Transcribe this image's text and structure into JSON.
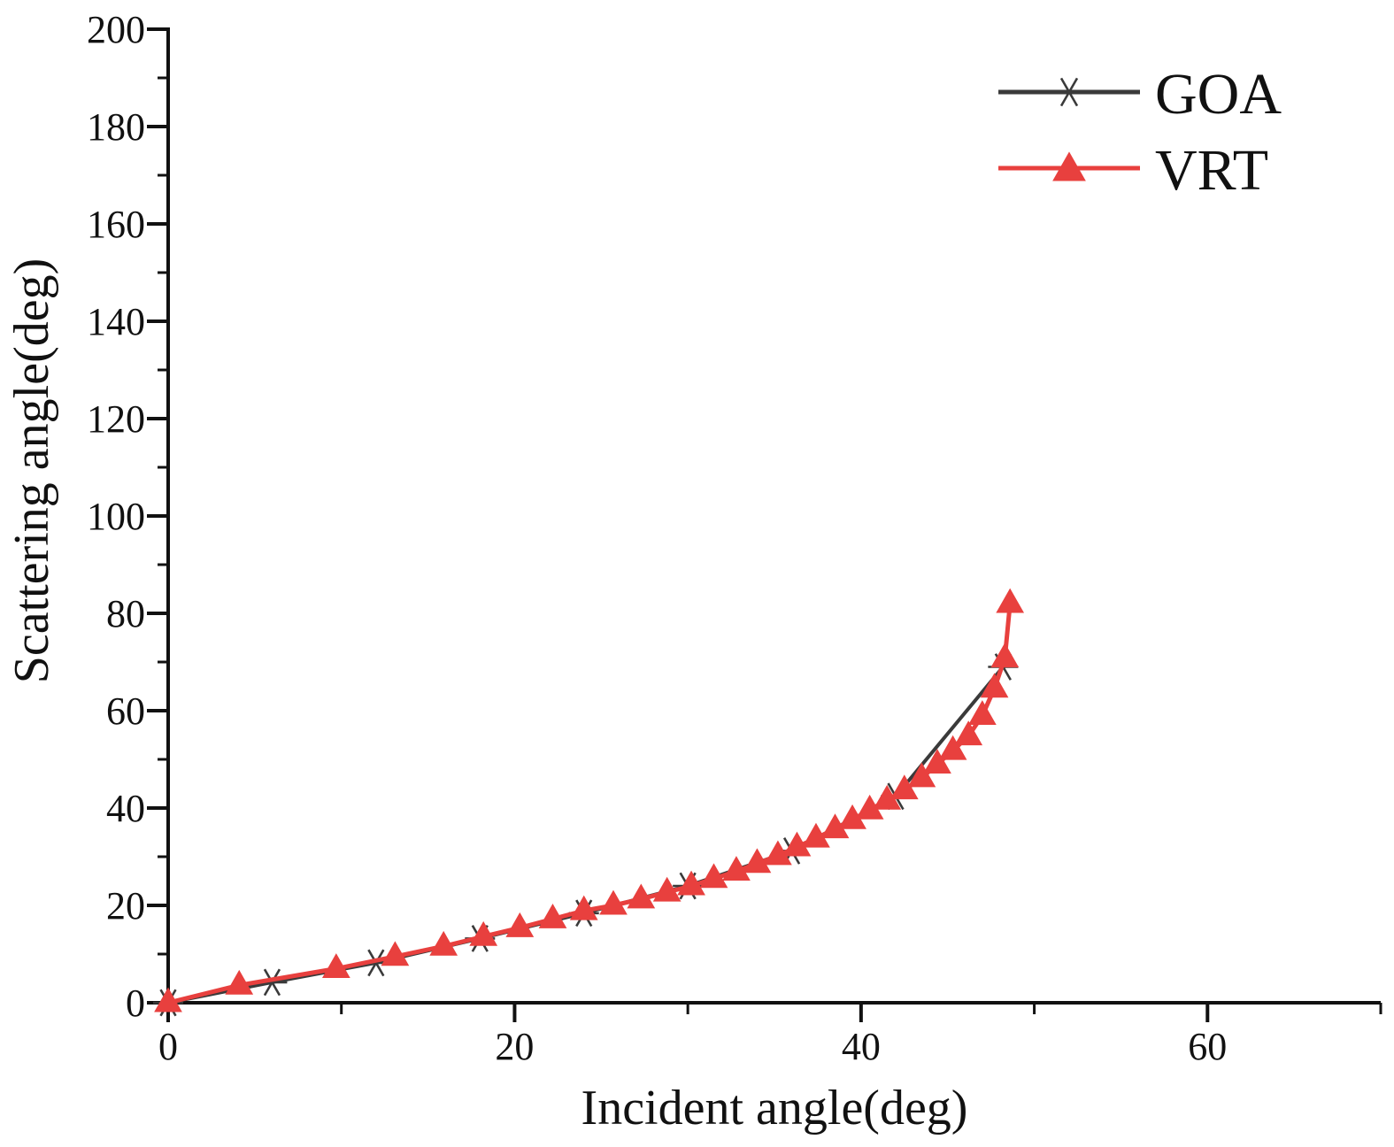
{
  "chart_data": {
    "type": "line",
    "xlabel": "Incident angle(deg)",
    "ylabel": "Scattering angle(deg)",
    "xlim": [
      0,
      70
    ],
    "ylim": [
      0,
      200
    ],
    "xticks": [
      "0",
      "20",
      "40",
      "60"
    ],
    "yticks": [
      "0",
      "20",
      "40",
      "60",
      "80",
      "100",
      "120",
      "140",
      "160",
      "180",
      "200"
    ],
    "grid": false,
    "legend": "top-right",
    "series": [
      {
        "name": "GOA",
        "color": "#3a3a3a",
        "marker": "asterisk",
        "x": [
          0,
          6,
          12,
          18,
          24,
          30,
          36,
          42,
          48.2
        ],
        "y": [
          0,
          4.2,
          8.2,
          13.2,
          18.4,
          24.0,
          31.2,
          42.4,
          69.0
        ]
      },
      {
        "name": "VRT",
        "color": "#e8403e",
        "marker": "triangle",
        "x": [
          0,
          4.1,
          9.7,
          13.1,
          15.9,
          18.2,
          20.3,
          22.2,
          24.0,
          25.7,
          27.3,
          28.8,
          30.2,
          31.5,
          32.8,
          34.0,
          35.2,
          36.3,
          37.4,
          38.5,
          39.5,
          40.5,
          41.5,
          42.5,
          43.5,
          44.4,
          45.3,
          46.2,
          47.0,
          47.7,
          48.3,
          48.6
        ],
        "y": [
          0,
          3.6,
          7.0,
          9.5,
          11.6,
          13.6,
          15.4,
          17.2,
          18.9,
          20.0,
          21.3,
          22.7,
          24.0,
          25.5,
          27.0,
          28.6,
          30.2,
          32.0,
          33.8,
          35.7,
          37.6,
          39.6,
          41.6,
          43.7,
          46.2,
          49.0,
          51.8,
          54.8,
          59.0,
          64.6,
          70.8,
          82.0
        ]
      }
    ]
  }
}
